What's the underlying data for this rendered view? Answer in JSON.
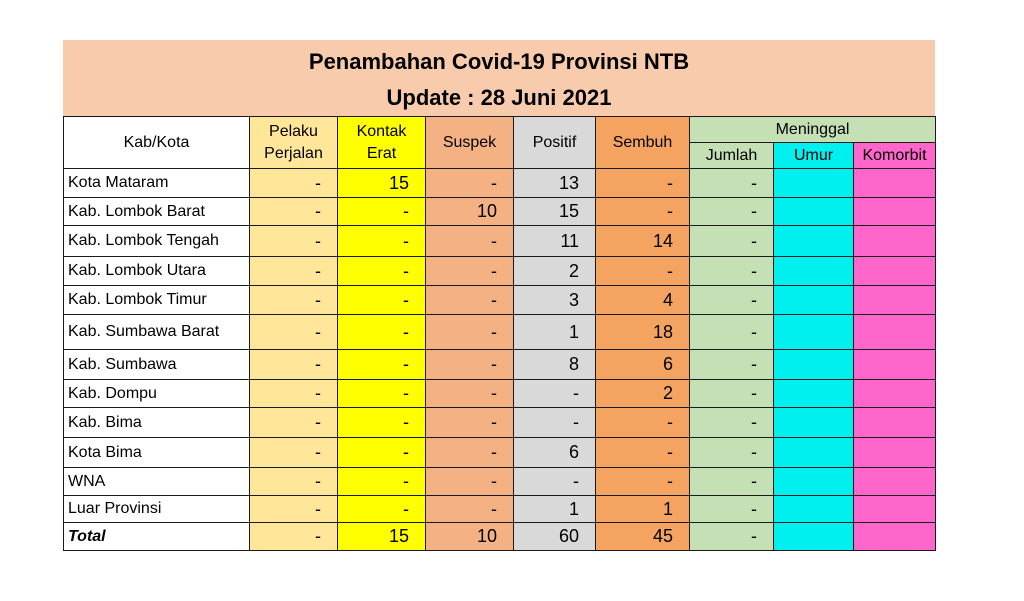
{
  "title": {
    "line1": "Penambahan Covid-19 Provinsi NTB",
    "line2": "Update : 28 Juni  2021"
  },
  "headers": {
    "kabkota": "Kab/Kota",
    "pelaku_line1": "Pelaku",
    "pelaku_line2": "Perjalan",
    "kontak_line1": "Kontak",
    "kontak_line2": "Erat",
    "suspek": "Suspek",
    "positif": "Positif",
    "sembuh": "Sembuh",
    "meninggal": "Meninggal",
    "jumlah": "Jumlah",
    "umur": "Umur",
    "komorbit": "Komorbit"
  },
  "colors": {
    "title_bg": "#f8cbad",
    "pelaku": "#ffe699",
    "kontak": "#ffff00",
    "suspek": "#f4b183",
    "positif": "#d9d9d9",
    "sembuh": "#f4a460",
    "meninggal": "#c5e0b4",
    "umur": "#00f0f0",
    "komorbit": "#ff66cc"
  },
  "rows": [
    {
      "name": "Kota Mataram",
      "pelaku": "-",
      "kontak": "15",
      "suspek": "-",
      "positif": "13",
      "sembuh": "-",
      "jumlah": "-",
      "umur": "",
      "komorbit": ""
    },
    {
      "name": "Kab. Lombok Barat",
      "pelaku": "-",
      "kontak": "-",
      "suspek": "10",
      "positif": "15",
      "sembuh": "-",
      "jumlah": "-",
      "umur": "",
      "komorbit": ""
    },
    {
      "name": "Kab. Lombok Tengah",
      "pelaku": "-",
      "kontak": "-",
      "suspek": "-",
      "positif": "11",
      "sembuh": "14",
      "jumlah": "-",
      "umur": "",
      "komorbit": ""
    },
    {
      "name": "Kab. Lombok  Utara",
      "pelaku": "-",
      "kontak": "-",
      "suspek": "-",
      "positif": "2",
      "sembuh": "-",
      "jumlah": "-",
      "umur": "",
      "komorbit": ""
    },
    {
      "name": "Kab. Lombok Timur",
      "pelaku": "-",
      "kontak": "-",
      "suspek": "-",
      "positif": "3",
      "sembuh": "4",
      "jumlah": "-",
      "umur": "",
      "komorbit": ""
    },
    {
      "name": "Kab. Sumbawa Barat",
      "pelaku": "-",
      "kontak": "-",
      "suspek": "-",
      "positif": "1",
      "sembuh": "18",
      "jumlah": "-",
      "umur": "",
      "komorbit": ""
    },
    {
      "name": "Kab. Sumbawa",
      "pelaku": "-",
      "kontak": "-",
      "suspek": "-",
      "positif": "8",
      "sembuh": "6",
      "jumlah": "-",
      "umur": "",
      "komorbit": ""
    },
    {
      "name": "Kab. Dompu",
      "pelaku": "-",
      "kontak": "-",
      "suspek": "-",
      "positif": "-",
      "sembuh": "2",
      "jumlah": "-",
      "umur": "",
      "komorbit": ""
    },
    {
      "name": "Kab. Bima",
      "pelaku": "-",
      "kontak": "-",
      "suspek": "-",
      "positif": "-",
      "sembuh": "-",
      "jumlah": "-",
      "umur": "",
      "komorbit": ""
    },
    {
      "name": "Kota Bima",
      "pelaku": "-",
      "kontak": "-",
      "suspek": "-",
      "positif": "6",
      "sembuh": "-",
      "jumlah": "-",
      "umur": "",
      "komorbit": ""
    },
    {
      "name": "WNA",
      "pelaku": "-",
      "kontak": "-",
      "suspek": "-",
      "positif": "-",
      "sembuh": "-",
      "jumlah": "-",
      "umur": "",
      "komorbit": ""
    },
    {
      "name": "Luar Provinsi",
      "pelaku": "-",
      "kontak": "-",
      "suspek": "-",
      "positif": "1",
      "sembuh": "1",
      "jumlah": "-",
      "umur": "",
      "komorbit": ""
    }
  ],
  "total": {
    "name": "Total",
    "pelaku": "-",
    "kontak": "15",
    "suspek": "10",
    "positif": "60",
    "sembuh": "45",
    "jumlah": "-",
    "umur": "",
    "komorbit": ""
  }
}
